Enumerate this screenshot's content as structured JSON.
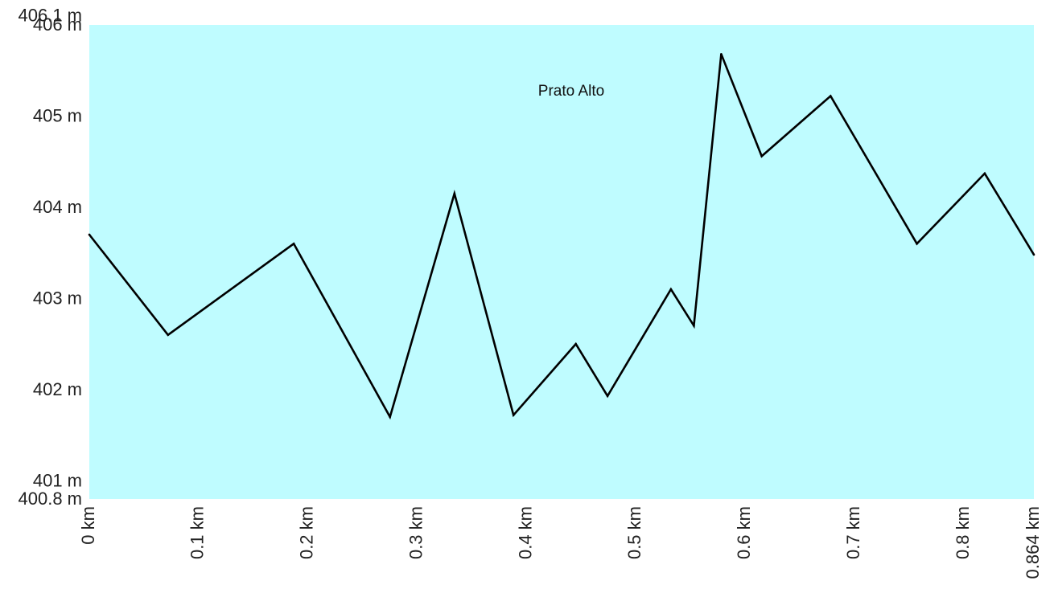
{
  "chart_data": {
    "type": "line",
    "title": "Prato Alto",
    "xlabel": "",
    "ylabel": "",
    "xlim": [
      0,
      0.864
    ],
    "ylim": [
      400.8,
      406.1
    ],
    "plot_background": "#bffcff",
    "line_color": "#000000",
    "grid": false,
    "legend": "none",
    "x_ticks": [
      {
        "value": 0,
        "label": "0 km"
      },
      {
        "value": 0.1,
        "label": "0.1 km"
      },
      {
        "value": 0.2,
        "label": "0.2 km"
      },
      {
        "value": 0.3,
        "label": "0.3 km"
      },
      {
        "value": 0.4,
        "label": "0.4 km"
      },
      {
        "value": 0.5,
        "label": "0.5 km"
      },
      {
        "value": 0.6,
        "label": "0.6 km"
      },
      {
        "value": 0.7,
        "label": "0.7 km"
      },
      {
        "value": 0.8,
        "label": "0.8 km"
      },
      {
        "value": 0.864,
        "label": "0.864 km"
      }
    ],
    "y_ticks": [
      {
        "value": 400.8,
        "label": "400.8 m"
      },
      {
        "value": 401,
        "label": "401 m"
      },
      {
        "value": 402,
        "label": "402 m"
      },
      {
        "value": 403,
        "label": "403 m"
      },
      {
        "value": 404,
        "label": "404 m"
      },
      {
        "value": 405,
        "label": "405 m"
      },
      {
        "value": 406,
        "label": "406 m"
      },
      {
        "value": 406.1,
        "label": "406.1 m"
      }
    ],
    "series": [
      {
        "x": [
          0.0,
          0.072,
          0.187,
          0.275,
          0.334,
          0.388,
          0.445,
          0.474,
          0.532,
          0.553,
          0.578,
          0.615,
          0.678,
          0.757,
          0.819,
          0.864
        ],
        "y": [
          403.7,
          402.6,
          403.6,
          401.7,
          404.15,
          401.72,
          402.5,
          401.93,
          403.1,
          402.7,
          405.68,
          404.56,
          405.22,
          403.6,
          404.37,
          403.48
        ]
      }
    ]
  }
}
